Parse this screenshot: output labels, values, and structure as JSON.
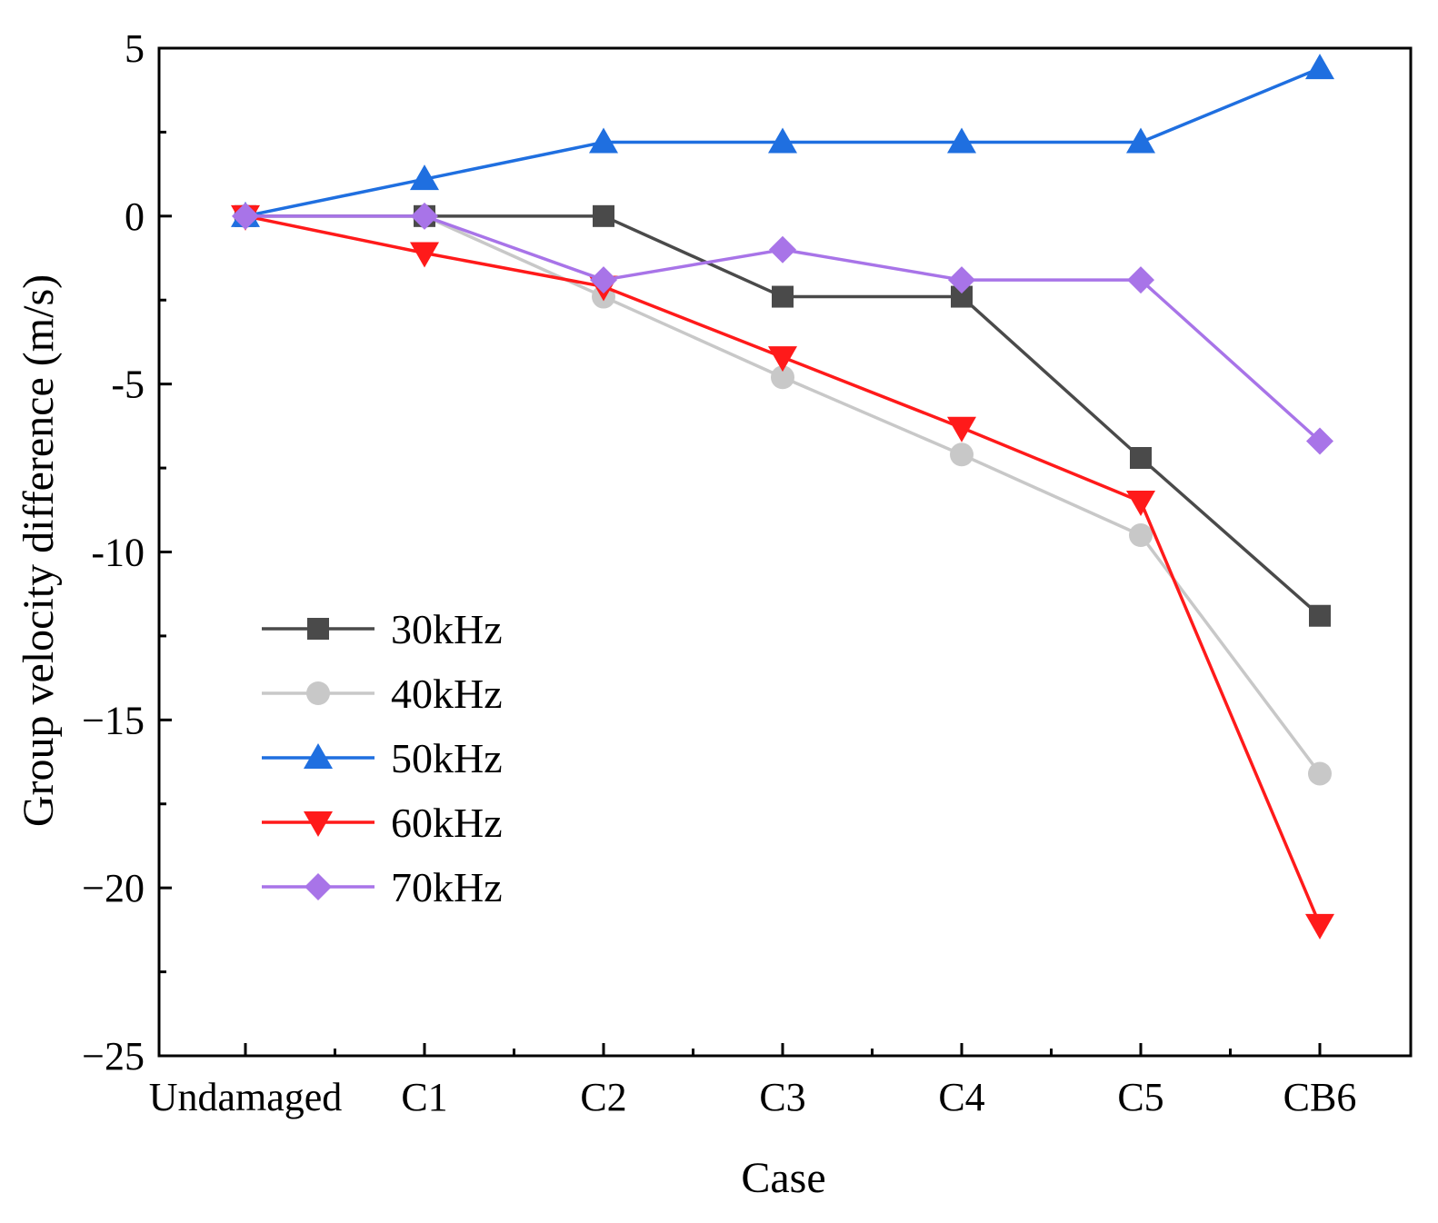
{
  "chart_data": {
    "type": "line",
    "title": "",
    "xlabel": "Case",
    "ylabel": "Group velocity difference (m/s)",
    "categories": [
      "Undamaged",
      "C1",
      "C2",
      "C3",
      "C4",
      "C5",
      "CB6"
    ],
    "ylim": [
      -25,
      5
    ],
    "yticks": [
      5,
      0,
      -5,
      -10,
      -15,
      -20,
      -25
    ],
    "ytick_labels": [
      "5",
      "0",
      "-5",
      "-10",
      "−15",
      "−20",
      "−25"
    ],
    "grid": false,
    "legend_position": "lower-left",
    "series": [
      {
        "name": "30kHz",
        "color": "#4a4a4a",
        "marker": "square",
        "values": [
          0,
          0,
          0,
          -2.4,
          -2.4,
          -7.2,
          -11.9
        ]
      },
      {
        "name": "40kHz",
        "color": "#c8c8c8",
        "marker": "circle",
        "values": [
          0,
          0,
          -2.4,
          -4.8,
          -7.1,
          -9.5,
          -16.6
        ]
      },
      {
        "name": "50kHz",
        "color": "#1f6fe0",
        "marker": "triangle-up",
        "values": [
          0,
          1.1,
          2.2,
          2.2,
          2.2,
          2.2,
          4.4
        ]
      },
      {
        "name": "60kHz",
        "color": "#ff1a1a",
        "marker": "triangle-down",
        "values": [
          0,
          -1.1,
          -2.1,
          -4.2,
          -6.3,
          -8.5,
          -21.1
        ]
      },
      {
        "name": "70kHz",
        "color": "#a874e8",
        "marker": "diamond",
        "values": [
          0,
          0,
          -1.9,
          -1.0,
          -1.9,
          -1.9,
          -6.7
        ]
      }
    ]
  }
}
